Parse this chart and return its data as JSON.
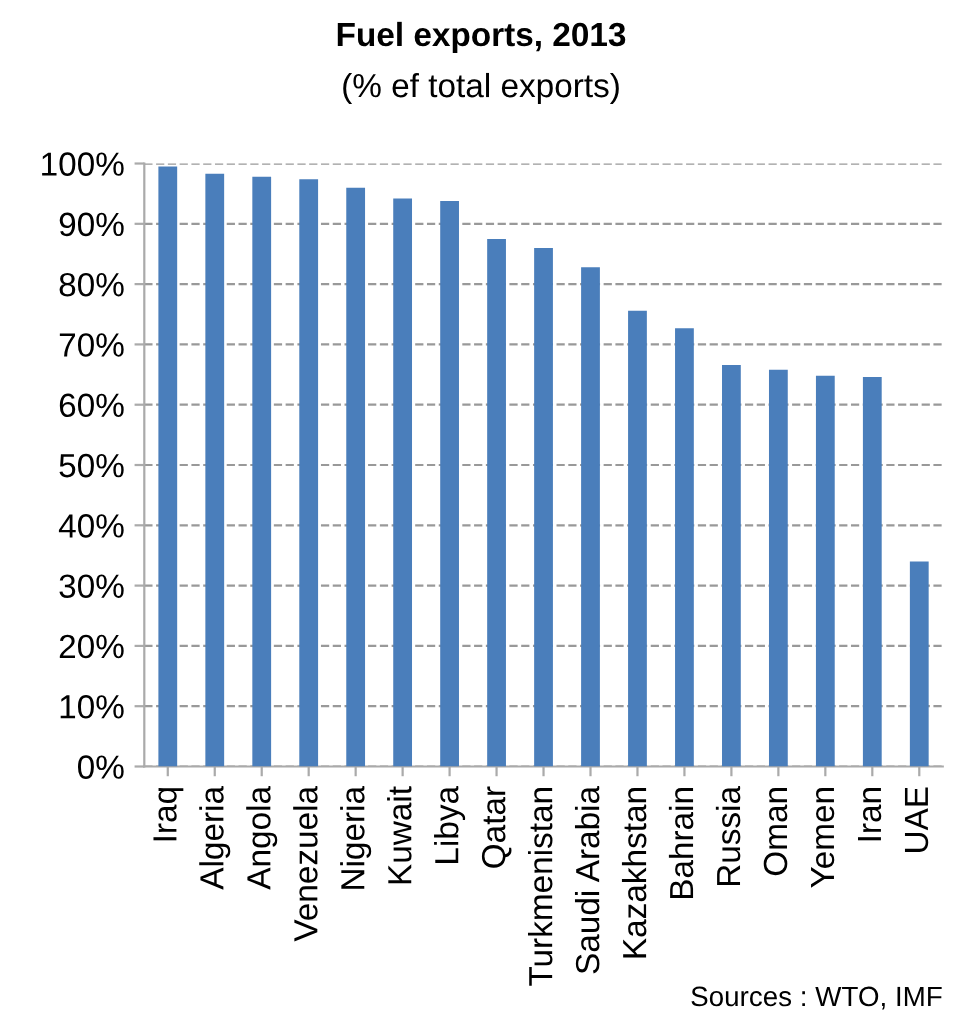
{
  "chart_data": {
    "type": "bar",
    "title": "Fuel exports, 2013",
    "subtitle": "(% ef total exports)",
    "categories": [
      "Iraq",
      "Algeria",
      "Angola",
      "Venezuela",
      "Nigeria",
      "Kuwait",
      "Libya",
      "Qatar",
      "Turkmenistan",
      "Saudi Arabia",
      "Kazakhstan",
      "Bahrain",
      "Russia",
      "Oman",
      "Yemen",
      "Iran",
      "UAE"
    ],
    "values": [
      99.5,
      98.3,
      97.8,
      97.4,
      96,
      94.2,
      93.8,
      87.5,
      86,
      82.8,
      75.6,
      72.7,
      66.6,
      65.8,
      64.8,
      64.6,
      34
    ],
    "color": "#4a7ebb",
    "ylim": [
      0,
      100
    ],
    "yticks": [
      {
        "value": 0,
        "label": "0%"
      },
      {
        "value": 10,
        "label": "10%"
      },
      {
        "value": 20,
        "label": "20%"
      },
      {
        "value": 30,
        "label": "30%"
      },
      {
        "value": 40,
        "label": "40%"
      },
      {
        "value": 50,
        "label": "50%"
      },
      {
        "value": 60,
        "label": "60%"
      },
      {
        "value": 70,
        "label": "70%"
      },
      {
        "value": 80,
        "label": "80%"
      },
      {
        "value": 90,
        "label": "90%"
      },
      {
        "value": 100,
        "label": "100%"
      }
    ],
    "grid": "y",
    "legend": false,
    "annotations": [
      "Sources : WTO, IMF"
    ]
  }
}
